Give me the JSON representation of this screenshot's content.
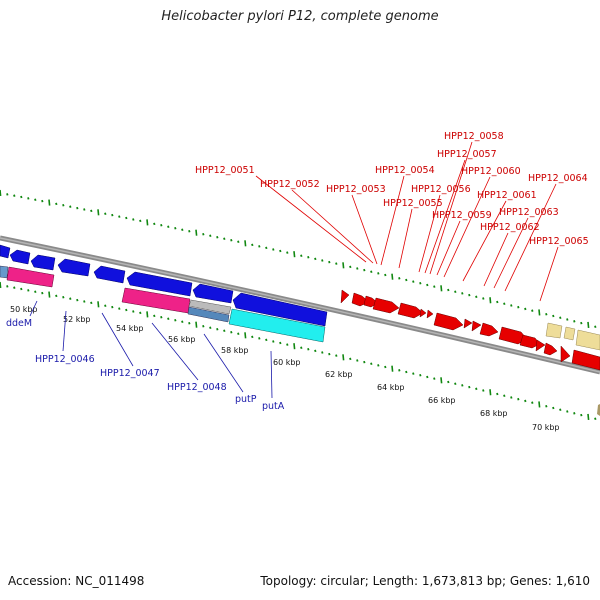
{
  "title": "Helicobacter pylori P12, complete genome",
  "accession": "Accession: NC_011498",
  "summary": "Topology: circular; Length: 1,673,813 bp; Genes: 1,610",
  "colors": {
    "forward_gene": "#e60000",
    "reverse_gene": "#1010dd",
    "magenta": "#ee2288",
    "cyan": "#22eeee",
    "pale": "#eedd99",
    "backbone": "#888888",
    "ticks": "#118811"
  },
  "ruler": [
    {
      "label": "50 kbp"
    },
    {
      "label": "52 kbp"
    },
    {
      "label": "54 kbp"
    },
    {
      "label": "56 kbp"
    },
    {
      "label": "58 kbp"
    },
    {
      "label": "60 kbp"
    },
    {
      "label": "62 kbp"
    },
    {
      "label": "64 kbp"
    },
    {
      "label": "66 kbp"
    },
    {
      "label": "68 kbp"
    },
    {
      "label": "70 kbp"
    }
  ],
  "red_labels": [
    {
      "text": "HPP12_0051"
    },
    {
      "text": "HPP12_0052"
    },
    {
      "text": "HPP12_0053"
    },
    {
      "text": "HPP12_0054"
    },
    {
      "text": "HPP12_0055"
    },
    {
      "text": "HPP12_0056"
    },
    {
      "text": "HPP12_0057"
    },
    {
      "text": "HPP12_0058"
    },
    {
      "text": "HPP12_0059"
    },
    {
      "text": "HPP12_0060"
    },
    {
      "text": "HPP12_0061"
    },
    {
      "text": "HPP12_0062"
    },
    {
      "text": "HPP12_0063"
    },
    {
      "text": "HPP12_0064"
    },
    {
      "text": "HPP12_0065"
    }
  ],
  "blue_labels": [
    {
      "text": "ddeM"
    },
    {
      "text": "HPP12_0046"
    },
    {
      "text": "HPP12_0047"
    },
    {
      "text": "HPP12_0048"
    },
    {
      "text": "putP"
    },
    {
      "text": "putA"
    }
  ]
}
